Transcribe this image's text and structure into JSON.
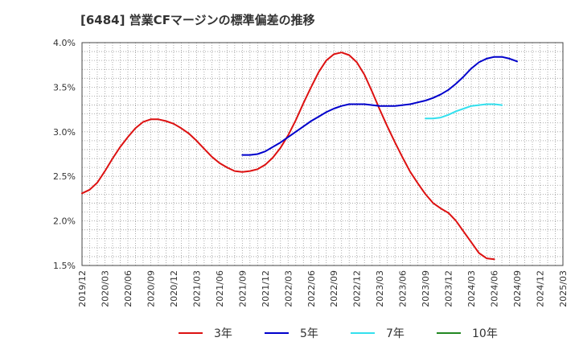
{
  "chart_data": {
    "type": "line",
    "title": "[6484]  営業CFマージンの標準偏差の推移",
    "xlabel": "",
    "ylabel": "",
    "ylim": [
      1.5,
      4.0
    ],
    "yticks": [
      "4.0%",
      "3.5%",
      "3.0%",
      "2.5%",
      "2.0%",
      "1.5%"
    ],
    "xticks": [
      "2019/12",
      "2020/03",
      "2020/06",
      "2020/09",
      "2020/12",
      "2021/03",
      "2021/06",
      "2021/09",
      "2021/12",
      "2022/03",
      "2022/06",
      "2022/09",
      "2022/12",
      "2023/03",
      "2023/06",
      "2023/09",
      "2023/12",
      "2024/03",
      "2024/06",
      "2024/09",
      "2024/12",
      "2025/03"
    ],
    "grid": true,
    "legend_position": "bottom",
    "series": [
      {
        "name": "3年",
        "color": "#dd1111",
        "points": [
          [
            "2019/12",
            2.31
          ],
          [
            "2020/01",
            2.35
          ],
          [
            "2020/02",
            2.43
          ],
          [
            "2020/03",
            2.56
          ],
          [
            "2020/04",
            2.7
          ],
          [
            "2020/05",
            2.83
          ],
          [
            "2020/06",
            2.94
          ],
          [
            "2020/07",
            3.04
          ],
          [
            "2020/08",
            3.11
          ],
          [
            "2020/09",
            3.14
          ],
          [
            "2020/10",
            3.14
          ],
          [
            "2020/11",
            3.12
          ],
          [
            "2020/12",
            3.09
          ],
          [
            "2021/01",
            3.04
          ],
          [
            "2021/02",
            2.98
          ],
          [
            "2021/03",
            2.9
          ],
          [
            "2021/04",
            2.81
          ],
          [
            "2021/05",
            2.72
          ],
          [
            "2021/06",
            2.65
          ],
          [
            "2021/07",
            2.6
          ],
          [
            "2021/08",
            2.56
          ],
          [
            "2021/09",
            2.55
          ],
          [
            "2021/10",
            2.56
          ],
          [
            "2021/11",
            2.58
          ],
          [
            "2021/12",
            2.63
          ],
          [
            "2022/01",
            2.71
          ],
          [
            "2022/02",
            2.82
          ],
          [
            "2022/03",
            2.96
          ],
          [
            "2022/04",
            3.13
          ],
          [
            "2022/05",
            3.32
          ],
          [
            "2022/06",
            3.5
          ],
          [
            "2022/07",
            3.67
          ],
          [
            "2022/08",
            3.8
          ],
          [
            "2022/09",
            3.87
          ],
          [
            "2022/10",
            3.89
          ],
          [
            "2022/11",
            3.86
          ],
          [
            "2022/12",
            3.78
          ],
          [
            "2023/01",
            3.64
          ],
          [
            "2023/02",
            3.45
          ],
          [
            "2023/03",
            3.25
          ],
          [
            "2023/04",
            3.06
          ],
          [
            "2023/05",
            2.88
          ],
          [
            "2023/06",
            2.71
          ],
          [
            "2023/07",
            2.55
          ],
          [
            "2023/08",
            2.42
          ],
          [
            "2023/09",
            2.3
          ],
          [
            "2023/10",
            2.2
          ],
          [
            "2023/11",
            2.14
          ],
          [
            "2023/12",
            2.09
          ],
          [
            "2024/01",
            2.0
          ],
          [
            "2024/02",
            1.88
          ],
          [
            "2024/03",
            1.76
          ],
          [
            "2024/04",
            1.64
          ],
          [
            "2024/05",
            1.58
          ],
          [
            "2024/06",
            1.57
          ]
        ]
      },
      {
        "name": "5年",
        "color": "#0000cc",
        "points": [
          [
            "2021/09",
            2.74
          ],
          [
            "2021/10",
            2.74
          ],
          [
            "2021/11",
            2.75
          ],
          [
            "2021/12",
            2.78
          ],
          [
            "2022/01",
            2.83
          ],
          [
            "2022/02",
            2.88
          ],
          [
            "2022/03",
            2.94
          ],
          [
            "2022/04",
            3.0
          ],
          [
            "2022/05",
            3.06
          ],
          [
            "2022/06",
            3.12
          ],
          [
            "2022/07",
            3.17
          ],
          [
            "2022/08",
            3.22
          ],
          [
            "2022/09",
            3.26
          ],
          [
            "2022/10",
            3.29
          ],
          [
            "2022/11",
            3.31
          ],
          [
            "2022/12",
            3.31
          ],
          [
            "2023/01",
            3.31
          ],
          [
            "2023/02",
            3.3
          ],
          [
            "2023/03",
            3.29
          ],
          [
            "2023/04",
            3.29
          ],
          [
            "2023/05",
            3.29
          ],
          [
            "2023/06",
            3.3
          ],
          [
            "2023/07",
            3.31
          ],
          [
            "2023/08",
            3.33
          ],
          [
            "2023/09",
            3.35
          ],
          [
            "2023/10",
            3.38
          ],
          [
            "2023/11",
            3.42
          ],
          [
            "2023/12",
            3.47
          ],
          [
            "2024/01",
            3.54
          ],
          [
            "2024/02",
            3.62
          ],
          [
            "2024/03",
            3.71
          ],
          [
            "2024/04",
            3.78
          ],
          [
            "2024/05",
            3.82
          ],
          [
            "2024/06",
            3.84
          ],
          [
            "2024/07",
            3.84
          ],
          [
            "2024/08",
            3.82
          ],
          [
            "2024/09",
            3.79
          ]
        ]
      },
      {
        "name": "7年",
        "color": "#33e0ee",
        "points": [
          [
            "2023/09",
            3.15
          ],
          [
            "2023/10",
            3.15
          ],
          [
            "2023/11",
            3.16
          ],
          [
            "2023/12",
            3.19
          ],
          [
            "2024/01",
            3.23
          ],
          [
            "2024/02",
            3.26
          ],
          [
            "2024/03",
            3.29
          ],
          [
            "2024/04",
            3.3
          ],
          [
            "2024/05",
            3.31
          ],
          [
            "2024/06",
            3.31
          ],
          [
            "2024/07",
            3.3
          ]
        ]
      },
      {
        "name": "10年",
        "color": "#228822",
        "points": []
      }
    ]
  }
}
